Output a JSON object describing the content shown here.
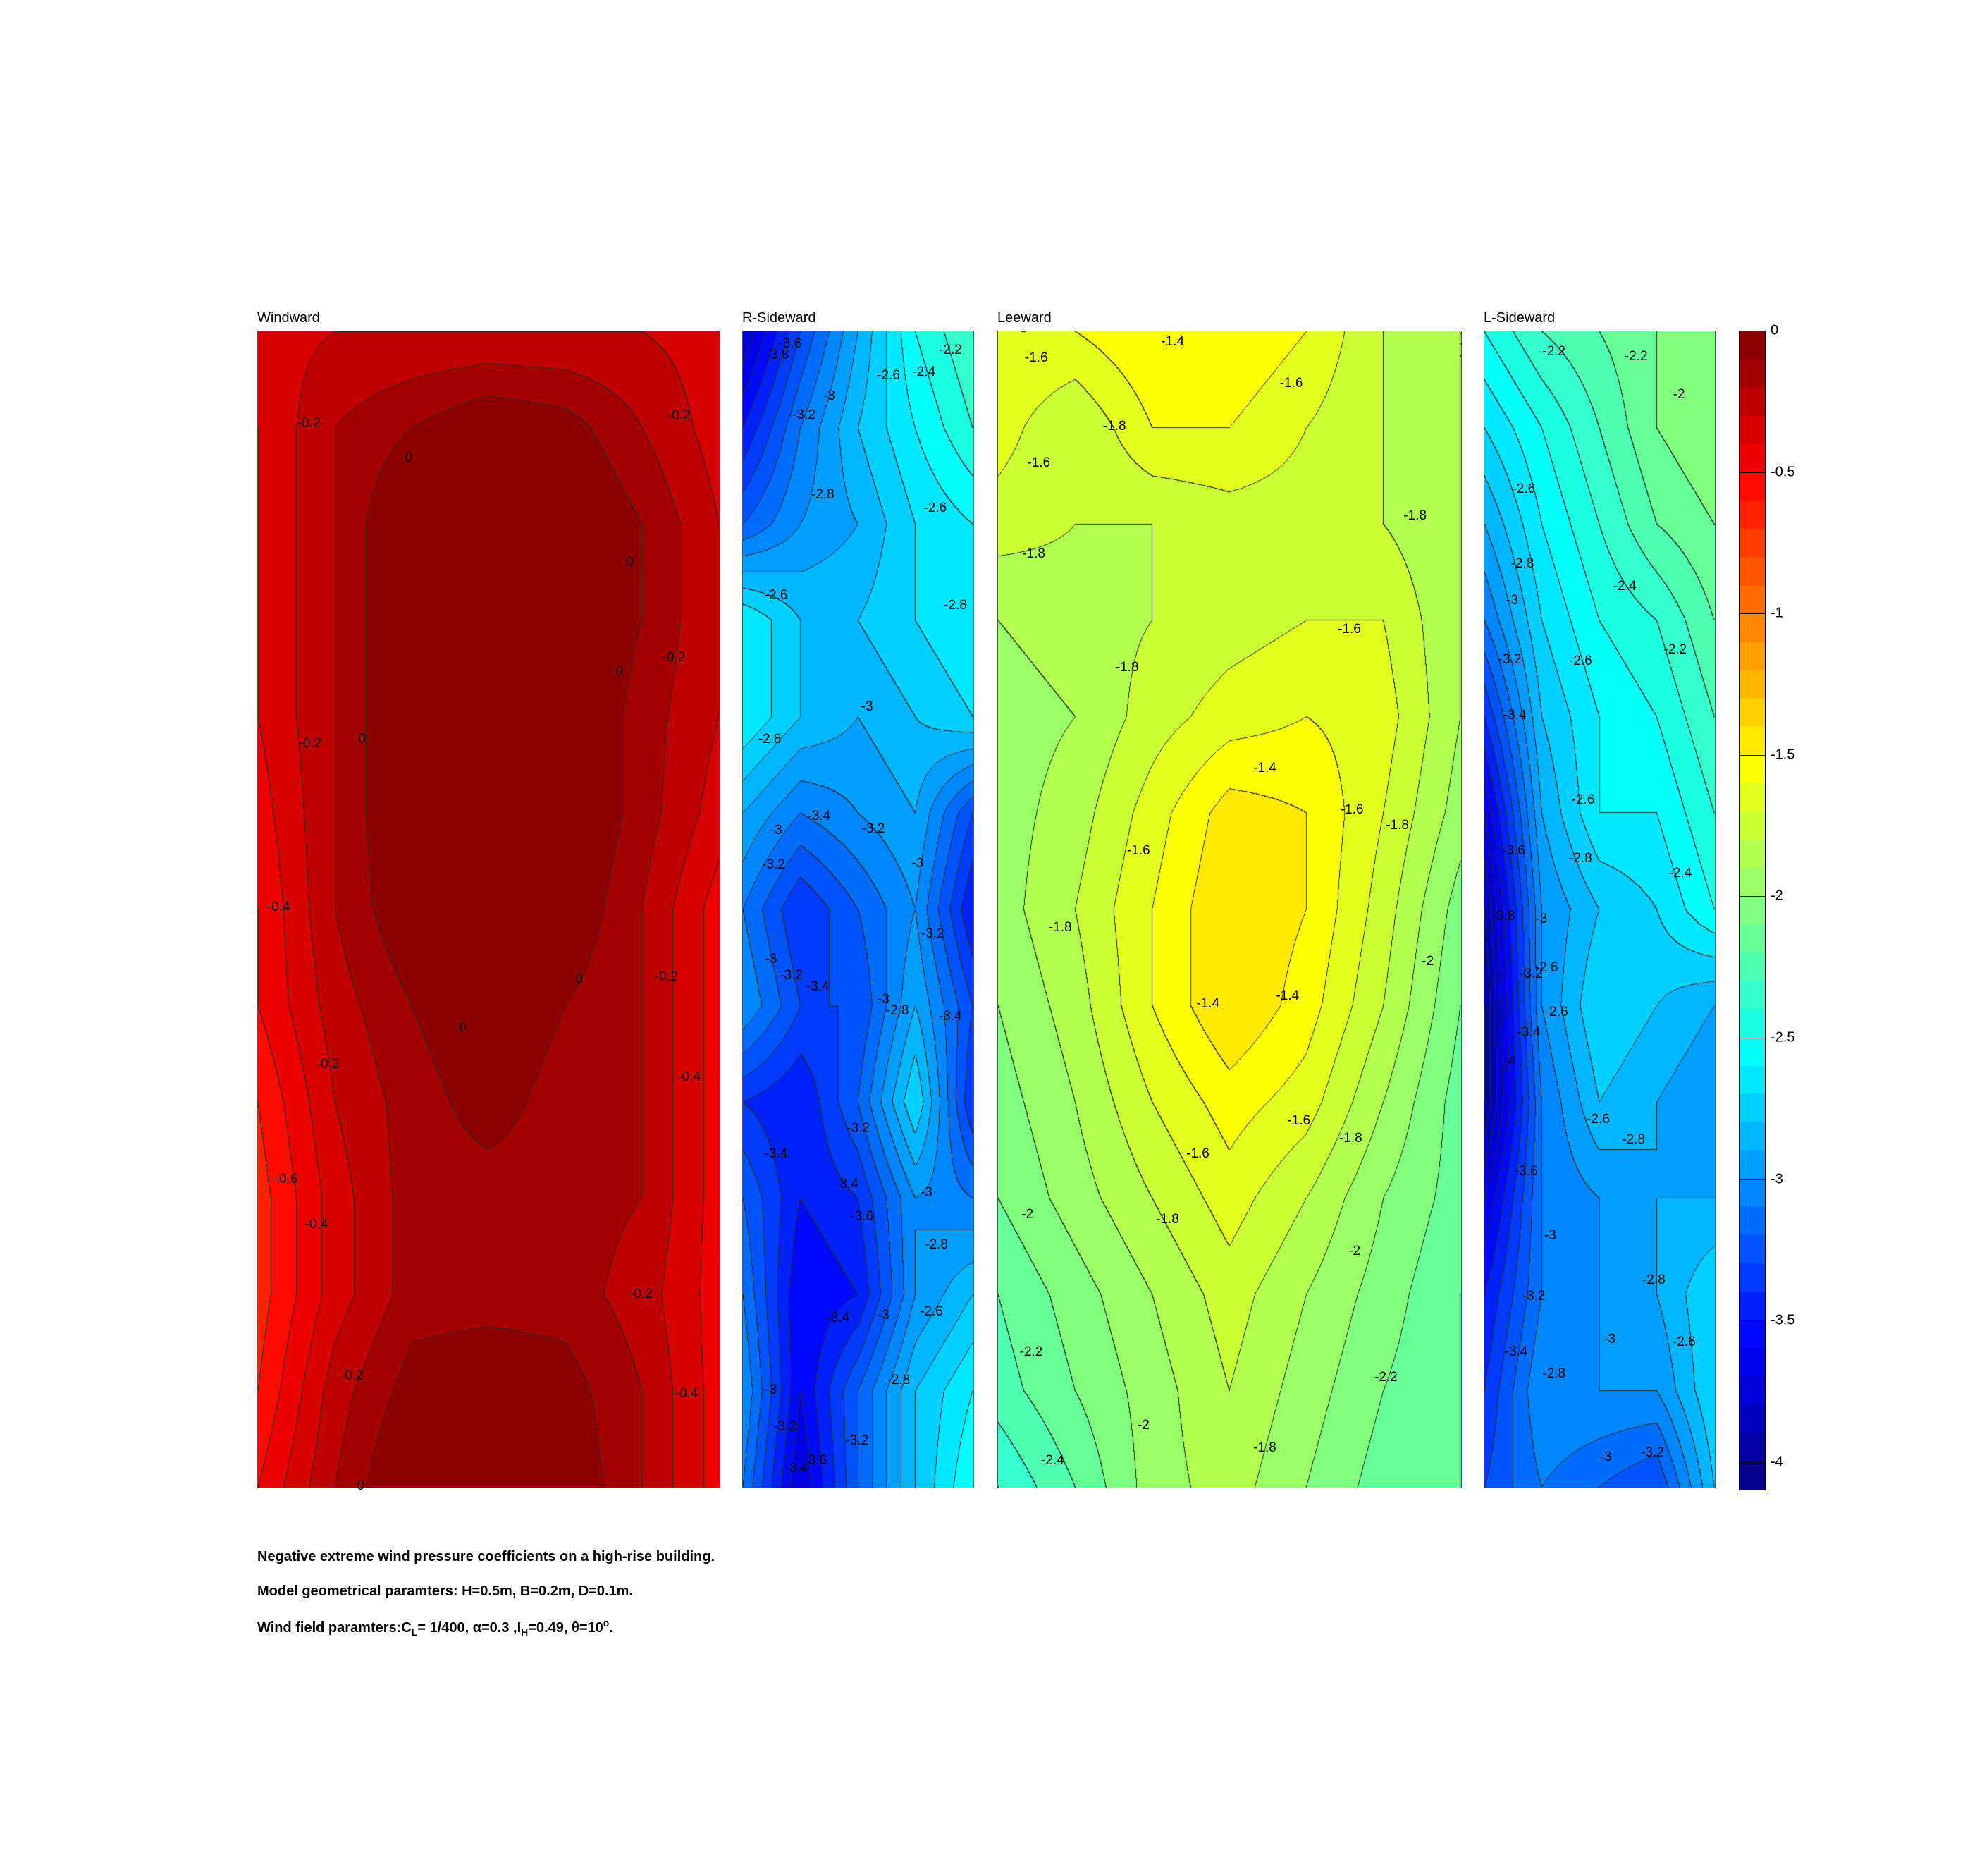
{
  "chart_data": {
    "type": "heatmap",
    "subtype": "filled-contour",
    "colormap": "jet",
    "clim": [
      -4.1,
      0
    ],
    "contour_step": 0.1,
    "colorbar": {
      "ticks": [
        "0",
        "-0.5",
        "-1",
        "-1.5",
        "-2",
        "-2.5",
        "-3",
        "-3.5",
        "-4"
      ],
      "tick_values": [
        0,
        -0.5,
        -1,
        -1.5,
        -2,
        -2.5,
        -3,
        -3.5,
        -4
      ],
      "placement": "right"
    },
    "panels": [
      {
        "title": "Windward",
        "grid": [
          [
            -0.35,
            -0.3,
            -0.3,
            -0.3,
            -0.3,
            -0.3,
            -0.35
          ],
          [
            -0.4,
            -0.2,
            -0.1,
            0,
            -0.05,
            -0.2,
            -0.35
          ],
          [
            -0.4,
            -0.2,
            0.05,
            0.05,
            0.05,
            -0.1,
            -0.3
          ],
          [
            -0.4,
            -0.2,
            0.05,
            0.05,
            0.05,
            -0.1,
            -0.3
          ],
          [
            -0.4,
            -0.2,
            0.05,
            0.05,
            0.05,
            -0.15,
            -0.3
          ],
          [
            -0.45,
            -0.2,
            0.05,
            0.05,
            0.05,
            -0.15,
            -0.35
          ],
          [
            -0.5,
            -0.2,
            0.0,
            0.05,
            0.0,
            -0.2,
            -0.45
          ],
          [
            -0.5,
            -0.25,
            -0.1,
            0.0,
            -0.1,
            -0.2,
            -0.45
          ],
          [
            -0.6,
            -0.3,
            -0.15,
            -0.05,
            -0.15,
            -0.2,
            -0.45
          ],
          [
            -0.65,
            -0.35,
            -0.15,
            -0.15,
            -0.15,
            -0.2,
            -0.45
          ],
          [
            -0.65,
            -0.35,
            -0.15,
            -0.15,
            -0.15,
            -0.25,
            -0.45
          ],
          [
            -0.6,
            -0.25,
            -0.05,
            0.0,
            -0.05,
            -0.2,
            -0.45
          ],
          [
            -0.5,
            -0.2,
            0.05,
            0.05,
            0.0,
            -0.2,
            -0.45
          ]
        ],
        "labels": [
          "-0.2",
          "0",
          "-0.2",
          "0",
          "0",
          "-0.2",
          "-0.2",
          "0",
          "-0.4",
          "-0.2",
          "0",
          "0",
          "-0.2",
          "-0.4",
          "-0.6",
          "-0.4",
          "-0.2",
          "-0.2",
          "-0.4",
          "0"
        ]
      },
      {
        "title": "R-Sideward",
        "grid": [
          [
            -3.8,
            -3.3,
            -2.9,
            -2.5,
            -2.3
          ],
          [
            -3.5,
            -3.1,
            -2.8,
            -2.6,
            -2.4
          ],
          [
            -3.2,
            -3.0,
            -2.9,
            -2.7,
            -2.6
          ],
          [
            -2.6,
            -2.8,
            -2.8,
            -2.7,
            -2.6
          ],
          [
            -2.6,
            -2.8,
            -2.9,
            -2.8,
            -2.7
          ],
          [
            -2.9,
            -3.1,
            -3.0,
            -2.9,
            -3.3
          ],
          [
            -3.1,
            -3.4,
            -3.2,
            -3.0,
            -3.5
          ],
          [
            -3.0,
            -3.3,
            -3.3,
            -2.9,
            -3.3
          ],
          [
            -3.4,
            -3.5,
            -3.2,
            -2.7,
            -3.4
          ],
          [
            -3.2,
            -3.5,
            -3.4,
            -3.0,
            -3.1
          ],
          [
            -3.1,
            -3.6,
            -3.5,
            -3.0,
            -2.8
          ],
          [
            -3.0,
            -3.6,
            -3.2,
            -2.8,
            -2.6
          ],
          [
            -3.1,
            -3.7,
            -3.2,
            -2.8,
            -2.5
          ]
        ],
        "labels": [
          "-3.6",
          "-3.8",
          "-2.2",
          "-2.6",
          "-2.4",
          "-3",
          "-3.2",
          "-2.8",
          "-2.6",
          "-2.6",
          "-2.8",
          "-3",
          "-2.8",
          "-3",
          "-3.4",
          "-3.2",
          "-3.2",
          "-3",
          "-3.2",
          "-3",
          "-3.2",
          "-3.4",
          "-3",
          "-2.8",
          "-3.4",
          "-3.2",
          "-3.4",
          "-3.4",
          "-3.6",
          "-3",
          "-2.8",
          "-3.4",
          "-3",
          "-2.6",
          "-2.8",
          "-3",
          "-3.2",
          "-3.2",
          "-3.4",
          "-3.6"
        ]
      },
      {
        "title": "Leeward",
        "grid": [
          [
            -1.6,
            -1.6,
            -1.5,
            -1.5,
            -1.6,
            -1.8,
            -1.9
          ],
          [
            -1.65,
            -1.8,
            -1.6,
            -1.6,
            -1.7,
            -1.8,
            -1.9
          ],
          [
            -1.75,
            -1.8,
            -1.8,
            -1.75,
            -1.75,
            -1.8,
            -1.9
          ],
          [
            -1.9,
            -1.85,
            -1.8,
            -1.75,
            -1.7,
            -1.7,
            -1.9
          ],
          [
            -1.95,
            -1.9,
            -1.75,
            -1.65,
            -1.6,
            -1.65,
            -1.9
          ],
          [
            -1.95,
            -1.85,
            -1.65,
            -1.45,
            -1.5,
            -1.7,
            -1.95
          ],
          [
            -1.95,
            -1.8,
            -1.6,
            -1.4,
            -1.5,
            -1.75,
            -2.05
          ],
          [
            -2.0,
            -1.85,
            -1.6,
            -1.4,
            -1.55,
            -1.8,
            -2.1
          ],
          [
            -2.05,
            -1.9,
            -1.7,
            -1.55,
            -1.65,
            -1.9,
            -2.15
          ],
          [
            -2.1,
            -1.95,
            -1.8,
            -1.65,
            -1.8,
            -2.0,
            -2.15
          ],
          [
            -2.2,
            -2.05,
            -1.9,
            -1.75,
            -1.9,
            -2.05,
            -2.2
          ],
          [
            -2.25,
            -2.1,
            -1.95,
            -1.8,
            -1.95,
            -2.1,
            -2.2
          ],
          [
            -2.4,
            -2.2,
            -1.95,
            -1.85,
            -2.0,
            -2.15,
            -2.2
          ]
        ],
        "labels": [
          "-1.4",
          "-1.6",
          "-1.6",
          "-1.8",
          "-1.6",
          "-1.8",
          "-1.8",
          "-1.6",
          "-1.8",
          "-1.4",
          "-1.6",
          "-1.8",
          "-1.6",
          "-1.8",
          "-2",
          "-1.4",
          "-1.4",
          "-1.6",
          "-1.6",
          "-1.8",
          "-2",
          "-1.8",
          "-2",
          "-2.2",
          "-2.2",
          "-2",
          "-1.8",
          "-2.4"
        ]
      },
      {
        "title": "L-Sideward",
        "grid": [
          [
            -2.5,
            -2.3,
            -2.2,
            -2.1,
            -2.0
          ],
          [
            -2.7,
            -2.5,
            -2.3,
            -2.1,
            -2.0
          ],
          [
            -2.9,
            -2.6,
            -2.4,
            -2.2,
            -2.1
          ],
          [
            -3.1,
            -2.7,
            -2.5,
            -2.4,
            -2.2
          ],
          [
            -3.4,
            -2.8,
            -2.6,
            -2.5,
            -2.3
          ],
          [
            -3.7,
            -2.9,
            -2.6,
            -2.6,
            -2.4
          ],
          [
            -3.9,
            -3.0,
            -2.8,
            -2.7,
            -2.5
          ],
          [
            -4.0,
            -3.0,
            -2.7,
            -2.8,
            -2.9
          ],
          [
            -4.0,
            -3.1,
            -2.8,
            -2.9,
            -3.0
          ],
          [
            -3.7,
            -3.1,
            -3.0,
            -2.9,
            -2.9
          ],
          [
            -3.5,
            -3.1,
            -3.0,
            -2.9,
            -2.7
          ],
          [
            -3.4,
            -3.0,
            -3.0,
            -3.0,
            -2.7
          ],
          [
            -3.3,
            -3.1,
            -3.2,
            -3.3,
            -2.8
          ]
        ],
        "labels": [
          "-2.2",
          "-2.2",
          "-2",
          "-2.6",
          "-2.8",
          "-3",
          "-2.4",
          "-2.2",
          "-3.2",
          "-2.6",
          "-3.4",
          "-2.6",
          "-3.6",
          "-2.8",
          "-2.4",
          "-3.8",
          "-3",
          "-3.2",
          "-2.6",
          "-2.6",
          "-3.4",
          "-4",
          "-2.6",
          "-2.8",
          "-3.6",
          "-3",
          "-2.8",
          "-3.2",
          "-3",
          "-2.6",
          "-3.4",
          "-2.8",
          "-3",
          "-3.2"
        ]
      }
    ]
  },
  "caption": {
    "line1": "Negative extreme wind pressure coefficients on a high-rise building.",
    "line2": "Model geometrical paramters: H=0.5m, B=0.2m, D=0.1m.",
    "line3": {
      "a": "Wind field paramters:C",
      "sub1": "L",
      "b": "= 1/400, α=0.3 ,I",
      "sub2": "H",
      "c": "=0.49, θ=10",
      "sup": "o",
      "d": "."
    }
  }
}
